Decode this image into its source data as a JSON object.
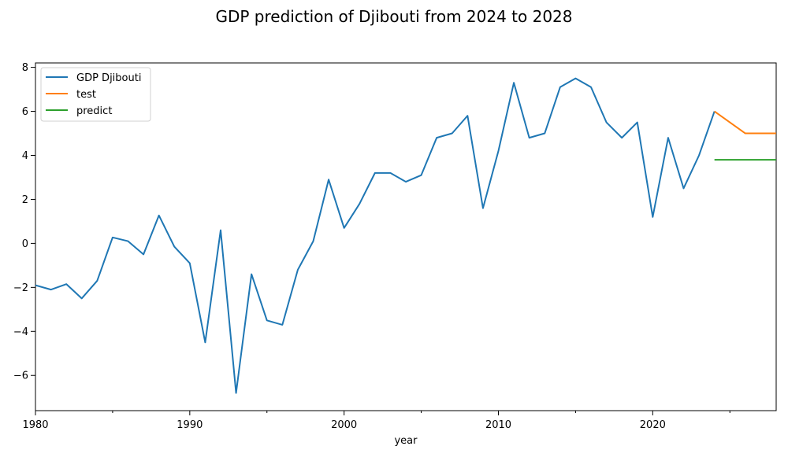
{
  "chart_data": {
    "type": "line",
    "title": "GDP prediction of Djibouti from 2024 to 2028",
    "xlabel": "year",
    "ylabel": "",
    "xlim": [
      1980,
      2028
    ],
    "ylim": [
      -7.6,
      8.2
    ],
    "x_major_ticks": [
      1980,
      1990,
      2000,
      2010,
      2020
    ],
    "x_minor_ticks": [
      1985,
      1995,
      2005,
      2015,
      2025
    ],
    "y_ticks": [
      -6,
      -4,
      -2,
      0,
      2,
      4,
      6,
      8
    ],
    "x_tick_labels": [
      "1980",
      "1990",
      "2000",
      "2010",
      "2020"
    ],
    "y_tick_labels": [
      "−6",
      "−4",
      "−2",
      "0",
      "2",
      "4",
      "6",
      "8"
    ],
    "grid": false,
    "legend_position": "upper-left",
    "series": [
      {
        "name": "GDP Djibouti",
        "color": "#1f77b4",
        "x": [
          1980,
          1981,
          1982,
          1983,
          1984,
          1985,
          1986,
          1987,
          1988,
          1989,
          1990,
          1991,
          1992,
          1993,
          1994,
          1995,
          1996,
          1997,
          1998,
          1999,
          2000,
          2001,
          2002,
          2003,
          2004,
          2005,
          2006,
          2007,
          2008,
          2009,
          2010,
          2011,
          2012,
          2013,
          2014,
          2015,
          2016,
          2017,
          2018,
          2019,
          2020,
          2021,
          2022,
          2023,
          2024
        ],
        "values": [
          -1.9,
          -2.1,
          -1.85,
          -2.5,
          -1.7,
          0.27,
          0.1,
          -0.5,
          1.27,
          -0.15,
          -0.9,
          -4.5,
          0.6,
          -6.8,
          -1.4,
          -3.5,
          -3.7,
          -1.2,
          0.1,
          2.9,
          0.7,
          1.8,
          3.2,
          3.2,
          2.8,
          3.1,
          4.8,
          5.0,
          5.8,
          1.6,
          4.2,
          7.3,
          4.8,
          5.0,
          7.1,
          7.5,
          7.1,
          5.5,
          4.8,
          5.5,
          1.2,
          4.8,
          2.5,
          4.0,
          6.0
        ]
      },
      {
        "name": "test",
        "color": "#ff7f0e",
        "x": [
          2024,
          2025,
          2026,
          2027,
          2028
        ],
        "values": [
          6.0,
          5.5,
          5.0,
          5.0,
          5.0
        ]
      },
      {
        "name": "predict",
        "color": "#2ca02c",
        "x": [
          2024,
          2025,
          2026,
          2027,
          2028
        ],
        "values": [
          3.8,
          3.8,
          3.8,
          3.8,
          3.8
        ]
      }
    ]
  }
}
